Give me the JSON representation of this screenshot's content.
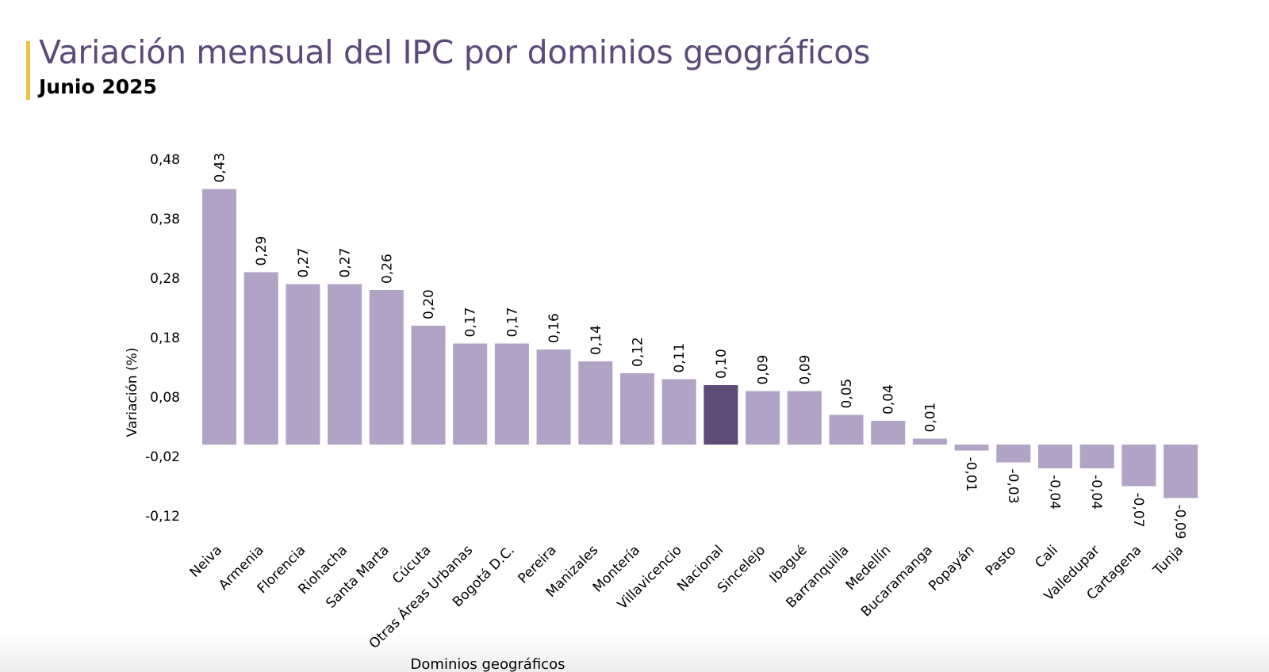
{
  "header": {
    "title": "Variación mensual del IPC por dominios geográficos",
    "subtitle": "Junio 2025"
  },
  "colors": {
    "bar": "#b0a3c6",
    "highlight": "#5e4b78",
    "title": "#5b4a7a",
    "accent": "#f0c242"
  },
  "chart_data": {
    "type": "bar",
    "title": "Variación mensual del IPC por dominios geográficos",
    "subtitle": "Junio 2025",
    "xlabel": "Dominios geográficos",
    "ylabel": "Variación (%)",
    "ylim": [
      -0.12,
      0.48
    ],
    "yticks": [
      0.48,
      0.38,
      0.28,
      0.18,
      0.08,
      -0.02,
      -0.12
    ],
    "ytick_labels": [
      "0,48",
      "0,38",
      "0,28",
      "0,18",
      "0,08",
      "-0,02",
      "-0,12"
    ],
    "grid": false,
    "highlighted_category": "Nacional",
    "categories": [
      "Neiva",
      "Armenia",
      "Florencia",
      "Riohacha",
      "Santa Marta",
      "Cúcuta",
      "Otras Áreas Urbanas",
      "Bogotá D.C.",
      "Pereira",
      "Manizales",
      "Montería",
      "Villavicencio",
      "Nacional",
      "Sincelejo",
      "Ibagué",
      "Barranquilla",
      "Medellín",
      "Bucaramanga",
      "Popayán",
      "Pasto",
      "Cali",
      "Valledupar",
      "Cartagena",
      "Tunja"
    ],
    "values": [
      0.43,
      0.29,
      0.27,
      0.27,
      0.26,
      0.2,
      0.17,
      0.17,
      0.16,
      0.14,
      0.12,
      0.11,
      0.1,
      0.09,
      0.09,
      0.05,
      0.04,
      0.01,
      -0.01,
      -0.03,
      -0.04,
      -0.04,
      -0.07,
      -0.09
    ],
    "data_labels": [
      "0,43",
      "0,29",
      "0,27",
      "0,27",
      "0,26",
      "0,20",
      "0,17",
      "0,17",
      "0,16",
      "0,14",
      "0,12",
      "0,11",
      "0,10",
      "0,09",
      "0,09",
      "0,05",
      "0,04",
      "0,01",
      "-0,01",
      "-0,03",
      "-0,04",
      "-0,04",
      "-0,07",
      "-0,09"
    ]
  }
}
